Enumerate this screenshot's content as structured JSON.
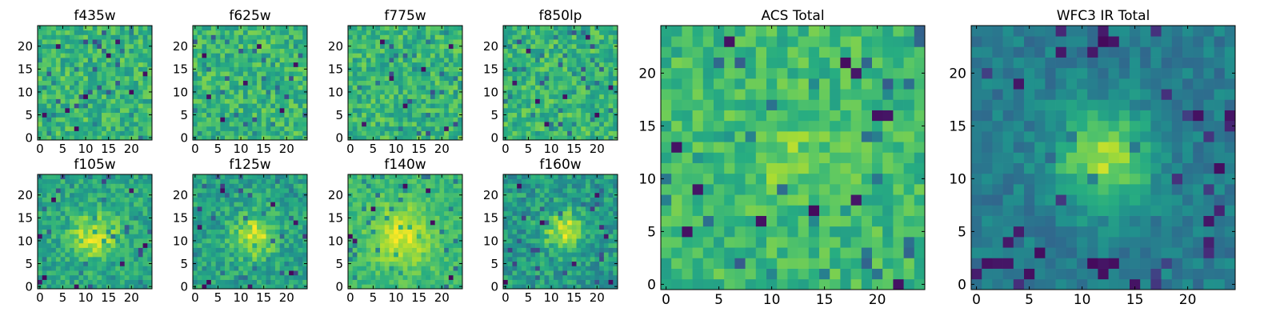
{
  "figure": {
    "colormap": "viridis",
    "image_size": [
      25,
      25
    ],
    "axis_range": [
      0,
      24
    ]
  },
  "chart_data": [
    {
      "type": "heatmap",
      "title": "f435w",
      "xticks": [
        "0",
        "5",
        "10",
        "15",
        "20"
      ],
      "yticks": [
        "0",
        "5",
        "10",
        "15",
        "20"
      ],
      "xlim": [
        0,
        24
      ],
      "ylim": [
        0,
        24
      ],
      "pattern": {
        "center": [
          12,
          12
        ],
        "peak": 0.0,
        "width": 4,
        "base": 0.66,
        "noise": 0.15,
        "seed": 11
      },
      "dark_pixels": [
        [
          1,
          5
        ],
        [
          4,
          20
        ],
        [
          8,
          2
        ],
        [
          10,
          9
        ],
        [
          15,
          18
        ],
        [
          17,
          21
        ],
        [
          20,
          10
        ],
        [
          23,
          14
        ],
        [
          6,
          6
        ]
      ]
    },
    {
      "type": "heatmap",
      "title": "f625w",
      "xticks": [
        "0",
        "5",
        "10",
        "15",
        "20"
      ],
      "yticks": [
        "0",
        "5",
        "10",
        "15",
        "20"
      ],
      "xlim": [
        0,
        24
      ],
      "ylim": [
        0,
        24
      ],
      "pattern": {
        "center": [
          12,
          12
        ],
        "peak": 0.0,
        "width": 4,
        "base": 0.66,
        "noise": 0.15,
        "seed": 23
      },
      "dark_pixels": [
        [
          2,
          18
        ],
        [
          6,
          4
        ],
        [
          11,
          12
        ],
        [
          14,
          20
        ],
        [
          19,
          6
        ],
        [
          22,
          16
        ],
        [
          3,
          9
        ]
      ]
    },
    {
      "type": "heatmap",
      "title": "f775w",
      "xticks": [
        "0",
        "5",
        "10",
        "15",
        "20"
      ],
      "yticks": [
        "0",
        "5",
        "10",
        "15",
        "20"
      ],
      "xlim": [
        0,
        24
      ],
      "ylim": [
        0,
        24
      ],
      "pattern": {
        "center": [
          12,
          12
        ],
        "peak": 0.0,
        "width": 4,
        "base": 0.66,
        "noise": 0.15,
        "seed": 37
      },
      "dark_pixels": [
        [
          3,
          3
        ],
        [
          7,
          21
        ],
        [
          12,
          7
        ],
        [
          16,
          15
        ],
        [
          21,
          2
        ],
        [
          22,
          20
        ],
        [
          9,
          13
        ]
      ]
    },
    {
      "type": "heatmap",
      "title": "f850lp",
      "xticks": [
        "0",
        "5",
        "10",
        "15",
        "20"
      ],
      "yticks": [
        "0",
        "5",
        "10",
        "15",
        "20"
      ],
      "xlim": [
        0,
        24
      ],
      "ylim": [
        0,
        24
      ],
      "pattern": {
        "center": [
          12,
          12
        ],
        "peak": 0.0,
        "width": 4,
        "base": 0.66,
        "noise": 0.15,
        "seed": 49
      },
      "dark_pixels": [
        [
          2,
          12
        ],
        [
          5,
          19
        ],
        [
          9,
          3
        ],
        [
          13,
          9
        ],
        [
          18,
          22
        ],
        [
          20,
          5
        ],
        [
          23,
          11
        ],
        [
          7,
          8
        ]
      ]
    },
    {
      "type": "heatmap",
      "title": "f105w",
      "xticks": [
        "0",
        "5",
        "10",
        "15",
        "20"
      ],
      "yticks": [
        "0",
        "5",
        "10",
        "15",
        "20"
      ],
      "xlim": [
        0,
        24
      ],
      "ylim": [
        0,
        24
      ],
      "pattern": {
        "center": [
          12,
          11
        ],
        "peak": 0.32,
        "width": 3.5,
        "base": 0.6,
        "noise": 0.13,
        "seed": 61
      },
      "dark_pixels": [
        [
          0,
          1
        ],
        [
          0,
          11
        ],
        [
          1,
          2
        ],
        [
          3,
          19
        ],
        [
          8,
          0
        ],
        [
          18,
          5
        ],
        [
          23,
          9
        ],
        [
          20,
          21
        ]
      ]
    },
    {
      "type": "heatmap",
      "title": "f125w",
      "xticks": [
        "0",
        "5",
        "10",
        "15",
        "20"
      ],
      "yticks": [
        "0",
        "5",
        "10",
        "15",
        "20"
      ],
      "xlim": [
        0,
        24
      ],
      "ylim": [
        0,
        24
      ],
      "pattern": {
        "center": [
          13,
          11
        ],
        "peak": 0.35,
        "width": 3.2,
        "base": 0.58,
        "noise": 0.14,
        "seed": 73
      },
      "dark_pixels": [
        [
          2,
          0
        ],
        [
          3,
          1
        ],
        [
          1,
          13
        ],
        [
          6,
          21
        ],
        [
          17,
          18
        ],
        [
          21,
          3
        ],
        [
          22,
          14
        ],
        [
          12,
          0
        ]
      ]
    },
    {
      "type": "heatmap",
      "title": "f140w",
      "xticks": [
        "0",
        "5",
        "10",
        "15",
        "20"
      ],
      "yticks": [
        "0",
        "5",
        "10",
        "15",
        "20"
      ],
      "xlim": [
        0,
        24
      ],
      "ylim": [
        0,
        24
      ],
      "pattern": {
        "center": [
          11,
          11
        ],
        "peak": 0.28,
        "width": 4.5,
        "base": 0.68,
        "noise": 0.09,
        "seed": 89
      },
      "dark_pixels": [
        [
          0,
          11
        ],
        [
          1,
          10
        ],
        [
          12,
          22
        ],
        [
          17,
          21
        ],
        [
          18,
          14
        ],
        [
          22,
          2
        ],
        [
          5,
          17
        ]
      ]
    },
    {
      "type": "heatmap",
      "title": "f160w",
      "xticks": [
        "0",
        "5",
        "10",
        "15",
        "20"
      ],
      "yticks": [
        "0",
        "5",
        "10",
        "15",
        "20"
      ],
      "xlim": [
        0,
        24
      ],
      "ylim": [
        0,
        24
      ],
      "pattern": {
        "center": [
          13,
          12
        ],
        "peak": 0.38,
        "width": 3.0,
        "base": 0.55,
        "noise": 0.15,
        "seed": 97
      },
      "dark_pixels": [
        [
          0,
          1
        ],
        [
          3,
          22
        ],
        [
          8,
          14
        ],
        [
          15,
          5
        ],
        [
          20,
          20
        ],
        [
          23,
          1
        ],
        [
          22,
          11
        ]
      ]
    },
    {
      "type": "heatmap",
      "title": "ACS Total",
      "xticks": [
        "0",
        "5",
        "10",
        "15",
        "20"
      ],
      "yticks": [
        "0",
        "5",
        "10",
        "15",
        "20"
      ],
      "xlim": [
        0,
        24
      ],
      "ylim": [
        0,
        24
      ],
      "pattern": {
        "center": [
          12,
          12
        ],
        "peak": 0.12,
        "width": 3.0,
        "base": 0.68,
        "noise": 0.12,
        "seed": 131
      },
      "dark_pixels": [
        [
          2,
          5
        ],
        [
          9,
          6
        ],
        [
          18,
          8
        ],
        [
          17,
          21
        ],
        [
          18,
          20
        ],
        [
          20,
          16
        ],
        [
          21,
          16
        ],
        [
          22,
          0
        ],
        [
          6,
          23
        ],
        [
          14,
          7
        ],
        [
          1,
          13
        ],
        [
          3,
          9
        ]
      ]
    },
    {
      "type": "heatmap",
      "title": "WFC3 IR Total",
      "xticks": [
        "0",
        "5",
        "10",
        "15",
        "20"
      ],
      "yticks": [
        "0",
        "5",
        "10",
        "15",
        "20"
      ],
      "xlim": [
        0,
        24
      ],
      "ylim": [
        0,
        24
      ],
      "pattern": {
        "center": [
          12,
          12
        ],
        "peak": 0.45,
        "width": 3.2,
        "base": 0.42,
        "noise": 0.09,
        "seed": 157
      },
      "dark_pixels": [
        [
          1,
          2
        ],
        [
          2,
          2
        ],
        [
          3,
          2
        ],
        [
          11,
          2
        ],
        [
          12,
          2
        ],
        [
          13,
          2
        ],
        [
          12,
          1
        ],
        [
          5,
          1
        ],
        [
          6,
          3
        ],
        [
          12,
          23
        ],
        [
          13,
          23
        ],
        [
          4,
          19
        ],
        [
          21,
          16
        ],
        [
          23,
          11
        ],
        [
          22,
          6
        ],
        [
          8,
          22
        ]
      ]
    }
  ]
}
